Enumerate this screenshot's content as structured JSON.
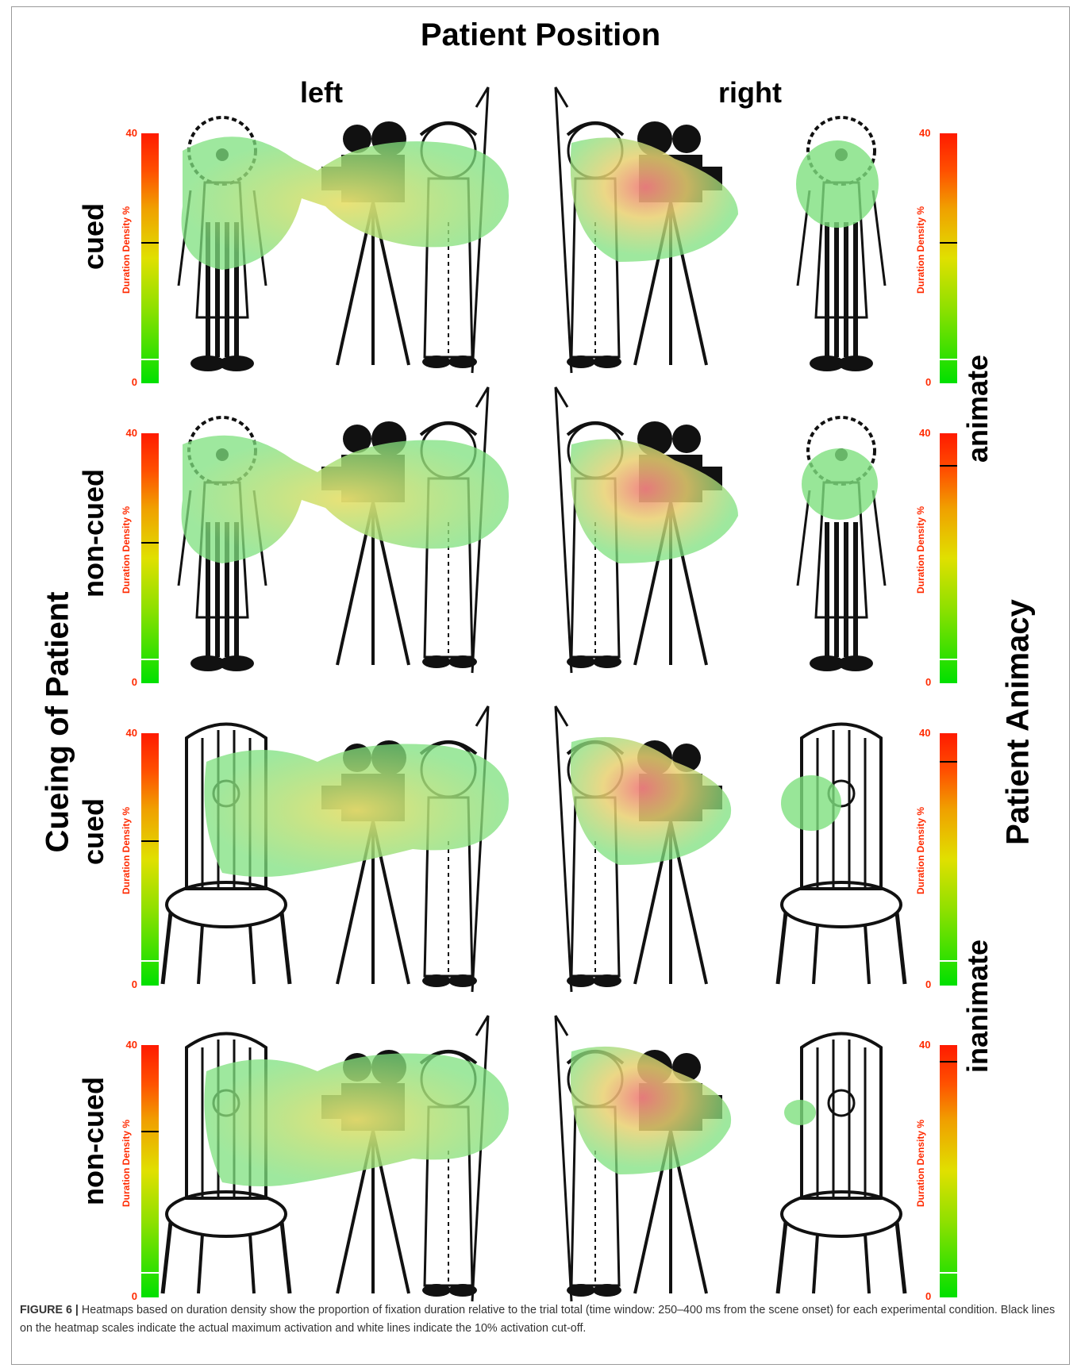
{
  "figure": {
    "title": "Patient Position",
    "columns": [
      "left",
      "right"
    ],
    "left_axis_title": "Cueing of Patient",
    "right_axis_title": "Patient Animacy",
    "rows": [
      "cued",
      "non-cued",
      "cued",
      "non-cued"
    ],
    "animacy_labels": [
      "animate",
      "inanimate"
    ],
    "colorbar": {
      "label": "Duration Density %",
      "max_tick": "40",
      "min_tick": "0",
      "gradient_colors": [
        "#00e000",
        "#e0e000",
        "#ff1a00"
      ],
      "max_line_color": "#000000",
      "cutoff_line_color": "#ffffff"
    },
    "heatmap_colors": {
      "low": "#7ee07e",
      "mid": "#e8e070",
      "high": "#f08080"
    },
    "icons": [
      "clown-icon",
      "chair-icon",
      "camera-operator-icon"
    ]
  },
  "caption": {
    "label": "FIGURE 6 |",
    "text": " Heatmaps based on duration density show the proportion of fixation duration relative to the trial total (time window: 250–400 ms from the scene onset) for each experimental condition. Black lines on the heatmap scales indicate the actual maximum activation and white lines indicate the 10% activation cut-off."
  }
}
